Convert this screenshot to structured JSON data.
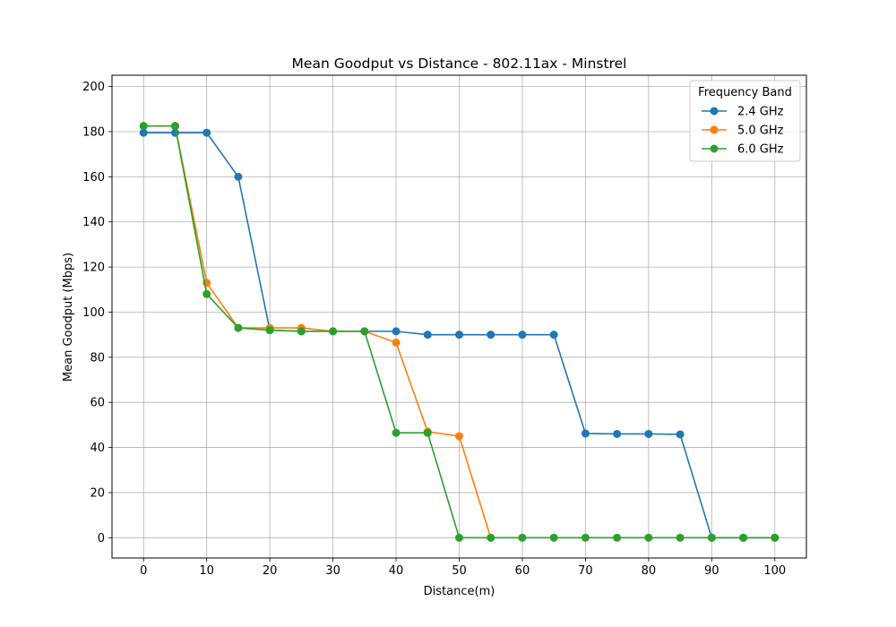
{
  "chart_data": {
    "type": "line",
    "title": "Mean Goodput vs Distance - 802.11ax - Minstrel",
    "xlabel": "Distance(m)",
    "ylabel": "Mean Goodput (Mbps)",
    "xlim": [
      -5,
      105
    ],
    "ylim": [
      -9,
      205
    ],
    "xticks": [
      0,
      10,
      20,
      30,
      40,
      50,
      60,
      70,
      80,
      90,
      100
    ],
    "yticks": [
      0,
      20,
      40,
      60,
      80,
      100,
      120,
      140,
      160,
      180,
      200
    ],
    "grid": true,
    "legend": {
      "title": "Frequency Band",
      "placement": "top-right"
    },
    "x": [
      0,
      5,
      10,
      15,
      20,
      25,
      30,
      35,
      40,
      45,
      50,
      55,
      60,
      65,
      70,
      75,
      80,
      85,
      90,
      95,
      100
    ],
    "series": [
      {
        "name": "2.4 GHz",
        "color": "#1f77b4",
        "values": [
          179.5,
          179.5,
          179.5,
          160,
          92,
          91.5,
          91.5,
          91.5,
          91.5,
          90,
          90,
          90,
          90,
          90,
          46.2,
          46,
          46,
          45.8,
          0,
          0,
          0
        ]
      },
      {
        "name": "5.0 GHz",
        "color": "#ff7f0e",
        "values": [
          182.5,
          182.5,
          113,
          93,
          93,
          93,
          91.5,
          91.5,
          86.5,
          47,
          45,
          0,
          null,
          null,
          null,
          null,
          null,
          null,
          null,
          null,
          null
        ]
      },
      {
        "name": "6.0 GHz",
        "color": "#2ca02c",
        "values": [
          182.5,
          182.5,
          108,
          93,
          92,
          91.5,
          91.5,
          91.5,
          46.5,
          46.5,
          0,
          0,
          0,
          0,
          0,
          0,
          0,
          0,
          0,
          0,
          0
        ]
      }
    ]
  }
}
